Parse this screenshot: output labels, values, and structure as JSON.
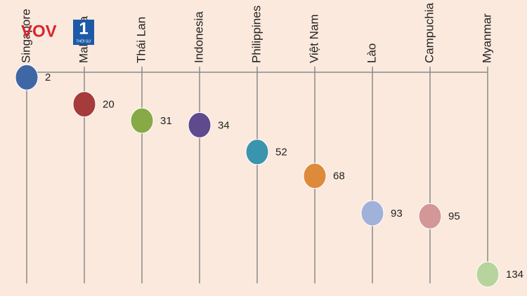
{
  "chart_data": {
    "type": "dot",
    "categories": [
      "Singapore",
      "Malaysia",
      "Thái Lan",
      "Indonesia",
      "Philippines",
      "Việt Nam",
      "Lào",
      "Campuchia",
      "Myanmar"
    ],
    "values": [
      2,
      20,
      31,
      34,
      52,
      68,
      93,
      95,
      134
    ],
    "colors": [
      "#3f67a6",
      "#a63b3b",
      "#87aa47",
      "#5f4a8e",
      "#3a94ad",
      "#de8a3b",
      "#a0b1da",
      "#d39797",
      "#b7d49c"
    ],
    "ylim": [
      0,
      140
    ],
    "inverted": true
  },
  "logo": {
    "text": "VOV",
    "number": "1",
    "caption": "THỜI SỰ"
  }
}
